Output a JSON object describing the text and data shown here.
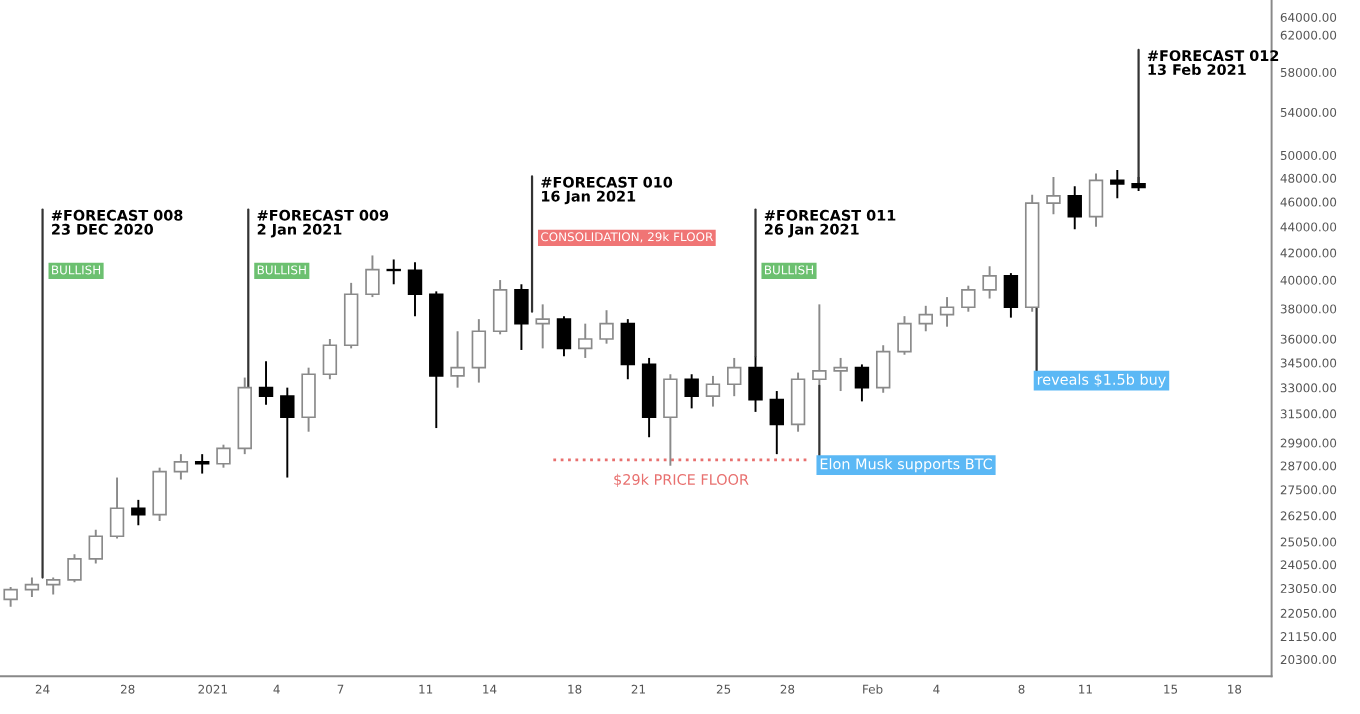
{
  "chart_data": {
    "type": "candlestick",
    "x": [
      "2020-12-22T12:00",
      "2020-12-23T12:00",
      "2020-12-24T12:00",
      "2020-12-25T12:00",
      "2020-12-26T12:00",
      "2020-12-27T12:00",
      "2020-12-28T12:00",
      "2020-12-29T12:00",
      "2020-12-30T12:00",
      "2020-12-31T12:00",
      "2021-01-01T12:00",
      "2021-01-02T12:00",
      "2021-01-03T12:00",
      "2021-01-04T12:00",
      "2021-01-05T12:00",
      "2021-01-06T12:00",
      "2021-01-07T12:00",
      "2021-01-08T12:00",
      "2021-01-09T12:00",
      "2021-01-10T12:00",
      "2021-01-11T12:00",
      "2021-01-12T12:00",
      "2021-01-13T12:00",
      "2021-01-14T12:00",
      "2021-01-15T12:00",
      "2021-01-16T12:00",
      "2021-01-17T12:00",
      "2021-01-18T12:00",
      "2021-01-19T12:00",
      "2021-01-20T12:00",
      "2021-01-21T12:00",
      "2021-01-22T12:00",
      "2021-01-23T12:00",
      "2021-01-24T12:00",
      "2021-01-25T12:00",
      "2021-01-26T12:00",
      "2021-01-27T12:00",
      "2021-01-28T12:00",
      "2021-01-29T12:00",
      "2021-01-30T12:00",
      "2021-01-31T12:00",
      "2021-02-01T12:00",
      "2021-02-02T12:00",
      "2021-02-03T12:00",
      "2021-02-04T12:00",
      "2021-02-05T12:00",
      "2021-02-06T12:00",
      "2021-02-07T12:00",
      "2021-02-08T12:00",
      "2021-02-09T12:00",
      "2021-02-10T12:00",
      "2021-02-11T12:00",
      "2021-02-12T12:00",
      "2021-02-13T12:00"
    ],
    "ohlc": [
      [
        22600,
        23100,
        22300,
        23000
      ],
      [
        23000,
        23500,
        22700,
        23200
      ],
      [
        23200,
        23500,
        22800,
        23400
      ],
      [
        23400,
        24500,
        23300,
        24300
      ],
      [
        24300,
        25600,
        24100,
        25300
      ],
      [
        25300,
        28100,
        25200,
        26600
      ],
      [
        26600,
        27000,
        25800,
        26300
      ],
      [
        26300,
        28600,
        26000,
        28400
      ],
      [
        28400,
        29300,
        28000,
        28900
      ],
      [
        28900,
        29300,
        28300,
        28800
      ],
      [
        28800,
        29800,
        28600,
        29600
      ],
      [
        29600,
        33600,
        29300,
        33000
      ],
      [
        33000,
        34600,
        32000,
        32500
      ],
      [
        32500,
        33000,
        28100,
        31300
      ],
      [
        31300,
        34200,
        30500,
        33800
      ],
      [
        33800,
        36000,
        33500,
        35600
      ],
      [
        35600,
        39800,
        35400,
        39000
      ],
      [
        39000,
        41800,
        38800,
        40750
      ],
      [
        40750,
        41500,
        39700,
        40700
      ],
      [
        40700,
        41300,
        37500,
        39000
      ],
      [
        39000,
        39200,
        30700,
        33700
      ],
      [
        33700,
        36500,
        33000,
        34200
      ],
      [
        34200,
        37300,
        33300,
        36500
      ],
      [
        36500,
        40000,
        36300,
        39300
      ],
      [
        39300,
        39700,
        35300,
        37000
      ],
      [
        37000,
        38300,
        35400,
        37300
      ],
      [
        37300,
        37500,
        34900,
        35400
      ],
      [
        35400,
        37000,
        34800,
        36000
      ],
      [
        36000,
        37900,
        35700,
        37000
      ],
      [
        37000,
        37300,
        33500,
        34400
      ],
      [
        34400,
        34800,
        30200,
        31300
      ],
      [
        31300,
        33800,
        28700,
        33500
      ],
      [
        33500,
        33800,
        31800,
        32500
      ],
      [
        32500,
        33700,
        31900,
        33200
      ],
      [
        33200,
        34800,
        32500,
        34200
      ],
      [
        34200,
        34900,
        31600,
        32300
      ],
      [
        32300,
        32800,
        29300,
        30900
      ],
      [
        30900,
        33900,
        30500,
        33500
      ],
      [
        33500,
        38300,
        33100,
        34000
      ],
      [
        34000,
        34800,
        32800,
        34200
      ],
      [
        34200,
        34400,
        32200,
        33000
      ],
      [
        33000,
        35600,
        32700,
        35200
      ],
      [
        35200,
        37500,
        35000,
        37000
      ],
      [
        37000,
        38200,
        36500,
        37600
      ],
      [
        37600,
        38800,
        36800,
        38100
      ],
      [
        38100,
        39600,
        37800,
        39300
      ],
      [
        39300,
        41000,
        38700,
        40300
      ],
      [
        40300,
        40500,
        37400,
        38100
      ],
      [
        38100,
        46600,
        37800,
        45900
      ],
      [
        45900,
        48100,
        45000,
        46500
      ],
      [
        46500,
        47300,
        43800,
        44800
      ],
      [
        44800,
        48400,
        44000,
        47800
      ],
      [
        47800,
        48700,
        46300,
        47500
      ],
      [
        47500,
        48100,
        46900,
        47200
      ]
    ],
    "series": [
      {
        "type": "line",
        "x": [
          "2021-01-17",
          "2021-01-29"
        ],
        "values": [
          29000,
          29000
        ],
        "color": "#e8706f",
        "line_style": "dotted"
      }
    ],
    "log": "y",
    "xlim": [
      "2020-12-22",
      "2021-02-19T18:00"
    ],
    "xticks": [
      {
        "value": "2020-12-24",
        "label": "24"
      },
      {
        "value": "2020-12-28",
        "label": "28"
      },
      {
        "value": "2021-01-01",
        "label": "2021"
      },
      {
        "value": "2021-01-04",
        "label": "4"
      },
      {
        "value": "2021-01-07",
        "label": "7"
      },
      {
        "value": "2021-01-11",
        "label": "11"
      },
      {
        "value": "2021-01-14",
        "label": "14"
      },
      {
        "value": "2021-01-18",
        "label": "18"
      },
      {
        "value": "2021-01-21",
        "label": "21"
      },
      {
        "value": "2021-01-25",
        "label": "25"
      },
      {
        "value": "2021-01-28",
        "label": "28"
      },
      {
        "value": "2021-02-01",
        "label": "Feb"
      },
      {
        "value": "2021-02-04",
        "label": "4"
      },
      {
        "value": "2021-02-08",
        "label": "8"
      },
      {
        "value": "2021-02-11",
        "label": "11"
      },
      {
        "value": "2021-02-15",
        "label": "15"
      },
      {
        "value": "2021-02-18",
        "label": "18"
      }
    ],
    "ylim": [
      19700,
      66000
    ],
    "yticks": [
      {
        "value": 64000,
        "label": "64000.00"
      },
      {
        "value": 62000,
        "label": "62000.00"
      },
      {
        "value": 58000,
        "label": "58000.00"
      },
      {
        "value": 54000,
        "label": "54000.00"
      },
      {
        "value": 50000,
        "label": "50000.00"
      },
      {
        "value": 48000,
        "label": "48000.00"
      },
      {
        "value": 46000,
        "label": "46000.00"
      },
      {
        "value": 44000,
        "label": "44000.00"
      },
      {
        "value": 42000,
        "label": "42000.00"
      },
      {
        "value": 40000,
        "label": "40000.00"
      },
      {
        "value": 38000,
        "label": "38000.00"
      },
      {
        "value": 36000,
        "label": "36000.00"
      },
      {
        "value": 34500,
        "label": "34500.00"
      },
      {
        "value": 33000,
        "label": "33000.00"
      },
      {
        "value": 31500,
        "label": "31500.00"
      },
      {
        "value": 29900,
        "label": "29900.00"
      },
      {
        "value": 28700,
        "label": "28700.00"
      },
      {
        "value": 27500,
        "label": "27500.00"
      },
      {
        "value": 26250,
        "label": "26250.00"
      },
      {
        "value": 25050,
        "label": "25050.00"
      },
      {
        "value": 24050,
        "label": "24050.00"
      },
      {
        "value": 23050,
        "label": "23050.00"
      },
      {
        "value": 22050,
        "label": "22050.00"
      },
      {
        "value": 21150,
        "label": "21150.00"
      },
      {
        "value": 20300,
        "label": "20300.00"
      }
    ],
    "grid": false,
    "annotations": [
      {
        "text": "#FORECAST 008\n23 DEC 2020",
        "x": "2020-12-24",
        "y": 23500
      },
      "BULLISH",
      {
        "text": "#FORECAST 009\n2 Jan 2021",
        "x": "2021-01-02T16:00",
        "y": 29800
      },
      "BULLISH",
      {
        "text": "#FORECAST 010\n16 Jan 2021",
        "x": "2021-01-16",
        "y": 37800
      },
      "CONSOLIDATION, 29k FLOOR",
      {
        "text": "#FORECAST 011\n26 Jan 2021",
        "x": "2021-01-26T12:00",
        "y": 34900
      },
      "BULLISH",
      {
        "text": "#FORECAST 012\n13 Feb 2021",
        "x": "2021-02-13T12:00",
        "y": 47400
      },
      {
        "text": "Elon Musk supports BTC",
        "x": "2021-01-29T12:00",
        "y": 33100
      },
      {
        "text": "reveals $1.5b buy",
        "x": "2021-02-08T17:00",
        "y": 38500
      },
      {
        "text": "$29k PRICE FLOOR",
        "x": "2021-01-23",
        "y": 29000
      }
    ]
  }
}
